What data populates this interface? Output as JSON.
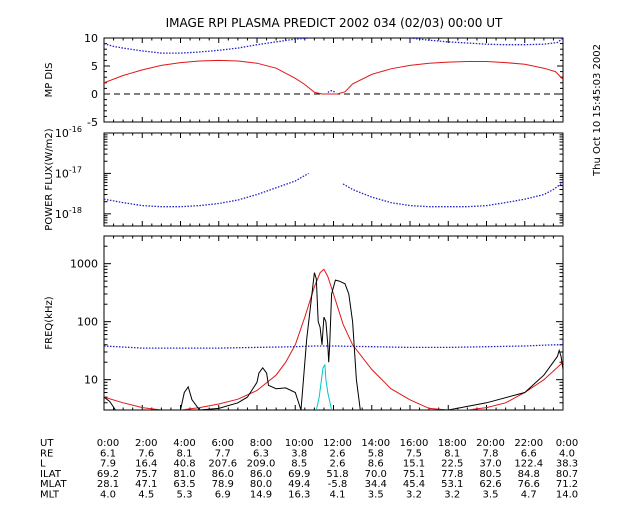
{
  "title": "IMAGE  RPI PLASMA PREDICT 2002 034 (02/03) 00:00 UT",
  "side_date": "Thu Oct 10 15:45:03 2002",
  "colors": {
    "axis": "#000000",
    "red": "#e01818",
    "blue": "#2020c8",
    "cyan": "#00c8c8",
    "black": "#000000"
  },
  "chart_data": [
    {
      "type": "line",
      "ylabel": "MP DIS",
      "ylim": [
        -5,
        10
      ],
      "yticks": [
        "-5",
        "0",
        "5",
        "10"
      ],
      "xlim": [
        0,
        24
      ],
      "reference_line": {
        "y": 0,
        "style": "dashed"
      },
      "series": [
        {
          "color": "red",
          "x": [
            0,
            1,
            2,
            3,
            4,
            5,
            6,
            7,
            8,
            9,
            10,
            10.5,
            11,
            11.4,
            12.2,
            12.6,
            13,
            14,
            15,
            16,
            17,
            18,
            19,
            20,
            21,
            22,
            23,
            23.6,
            24
          ],
          "y": [
            2,
            3.3,
            4.3,
            5.1,
            5.6,
            5.9,
            6,
            5.9,
            5.5,
            4.6,
            2.8,
            1.7,
            0.3,
            0,
            0,
            0.4,
            1.8,
            3.5,
            4.5,
            5.1,
            5.5,
            5.7,
            5.8,
            5.8,
            5.6,
            5.3,
            4.6,
            4,
            2.6
          ]
        },
        {
          "color": "blue",
          "style": "dotted",
          "x": [
            0,
            0.5,
            1,
            2,
            3,
            4,
            5,
            6,
            7,
            8,
            9,
            10,
            10.7
          ],
          "y": [
            9,
            8.5,
            8.2,
            7.7,
            7.3,
            7.3,
            7.5,
            7.8,
            8.2,
            8.8,
            9.3,
            9.8,
            10
          ]
        },
        {
          "color": "blue",
          "style": "dotted",
          "x": [
            16,
            17,
            18,
            19,
            20,
            21,
            22,
            23,
            23.7,
            24
          ],
          "y": [
            10,
            9.6,
            9.3,
            9.1,
            8.9,
            8.8,
            8.8,
            8.9,
            9.2,
            10
          ]
        },
        {
          "color": "blue",
          "style": "dotted",
          "x": [
            11.7,
            11.9,
            12.1
          ],
          "y": [
            0.3,
            0.6,
            0.3
          ]
        }
      ]
    },
    {
      "type": "line",
      "ylabel": "POWER FLUX(W/m2)",
      "yscale": "log",
      "ylim": [
        5e-19,
        1e-16
      ],
      "yticks": [
        {
          "base": "10",
          "exp": "-16",
          "value": 1e-16
        },
        {
          "base": "10",
          "exp": "-17",
          "value": 1e-17
        },
        {
          "base": "10",
          "exp": "-18",
          "value": 1e-18
        }
      ],
      "xlim": [
        0,
        24
      ],
      "series": [
        {
          "color": "blue",
          "style": "dotted",
          "x": [
            0,
            1,
            2,
            3,
            4,
            5,
            6,
            7,
            8,
            9,
            10,
            10.7
          ],
          "y": [
            2.3e-18,
            1.9e-18,
            1.6e-18,
            1.5e-18,
            1.5e-18,
            1.6e-18,
            1.8e-18,
            2.2e-18,
            3e-18,
            4.4e-18,
            6.5e-18,
            1e-17
          ]
        },
        {
          "color": "blue",
          "style": "dotted",
          "x": [
            12.5,
            13,
            14,
            15,
            16,
            17,
            18,
            19,
            20,
            21,
            22,
            23,
            23.5,
            24
          ],
          "y": [
            5.5e-18,
            4e-18,
            2.6e-18,
            1.9e-18,
            1.6e-18,
            1.5e-18,
            1.5e-18,
            1.5e-18,
            1.6e-18,
            1.9e-18,
            2.3e-18,
            3e-18,
            4e-18,
            6e-18
          ]
        }
      ]
    },
    {
      "type": "line",
      "ylabel": "FREQ(kHz)",
      "yscale": "log",
      "ylim": [
        3,
        3000
      ],
      "yticks": [
        "10",
        "100",
        "1000"
      ],
      "xlim": [
        0,
        24
      ],
      "series": [
        {
          "color": "red",
          "x": [
            0,
            1,
            2,
            3,
            4,
            5,
            6,
            7,
            8,
            9,
            9.5,
            10,
            10.5,
            11,
            11.3,
            11.5,
            11.7,
            12,
            12.5,
            13,
            14,
            15,
            16,
            17,
            18,
            19,
            20,
            21,
            22,
            23,
            24
          ],
          "y": [
            5,
            4,
            3.3,
            3,
            3,
            3.3,
            3.8,
            4.6,
            6.5,
            12,
            20,
            40,
            120,
            400,
            700,
            800,
            600,
            300,
            90,
            40,
            15,
            7,
            4.5,
            3.2,
            3,
            3,
            3.3,
            4,
            6,
            10,
            20
          ]
        },
        {
          "color": "blue",
          "style": "dotted",
          "x": [
            0,
            2,
            4,
            6,
            8,
            10,
            11,
            12,
            14,
            16,
            18,
            20,
            22,
            23.5,
            24
          ],
          "y": [
            38,
            35,
            35,
            35,
            36,
            37,
            38,
            38,
            37,
            36,
            36,
            37,
            38,
            40,
            40
          ]
        },
        {
          "color": "black",
          "x": [
            0,
            0.3,
            0.6,
            1,
            2,
            3,
            4,
            4.2,
            4.4,
            4.6,
            5,
            6,
            7,
            7.5,
            8,
            8.1,
            8.3,
            8.5,
            8.6,
            9,
            9.5,
            10,
            10.3,
            10.6,
            11,
            11.1,
            11.2,
            11.3,
            11.4,
            11.5,
            11.6,
            11.7,
            11.75,
            11.8,
            11.9,
            12.1,
            12.3,
            12.6,
            12.8,
            13,
            13.2,
            13.4,
            14,
            18,
            20,
            22,
            23,
            23.7,
            23.8,
            23.9,
            24
          ],
          "y": [
            5,
            4.2,
            3,
            3,
            3,
            3,
            3,
            6,
            7.5,
            4.5,
            3,
            3.2,
            4,
            5,
            9,
            13,
            16,
            13,
            8,
            7,
            7.2,
            6,
            3,
            50,
            700,
            550,
            100,
            80,
            40,
            120,
            100,
            40,
            20,
            40,
            300,
            520,
            500,
            450,
            300,
            100,
            10,
            3,
            3,
            3,
            4,
            6,
            12,
            25,
            32,
            25,
            15
          ]
        },
        {
          "color": "cyan",
          "x": [
            11.1,
            11.25,
            11.35,
            11.45,
            11.55,
            11.6,
            11.7,
            11.9
          ],
          "y": [
            3,
            5,
            9,
            16,
            18,
            10,
            6,
            3
          ]
        }
      ]
    }
  ],
  "x_axis": {
    "ticks": [
      "0:00",
      "2:00",
      "4:00",
      "6:00",
      "8:00",
      "10:00",
      "12:00",
      "14:00",
      "16:00",
      "18:00",
      "20:00",
      "22:00",
      "0:00"
    ],
    "tick_hours": [
      0,
      2,
      4,
      6,
      8,
      10,
      12,
      14,
      16,
      18,
      20,
      22,
      24
    ]
  },
  "table": {
    "rows": [
      {
        "label": "UT",
        "values": [
          "0:00",
          "2:00",
          "4:00",
          "6:00",
          "8:00",
          "10:00",
          "12:00",
          "14:00",
          "16:00",
          "18:00",
          "20:00",
          "22:00",
          "0:00"
        ]
      },
      {
        "label": "RE",
        "values": [
          "6.1",
          "7.6",
          "8.1",
          "7.7",
          "6.3",
          "3.8",
          "2.6",
          "5.8",
          "7.5",
          "8.1",
          "7.8",
          "6.6",
          "4.0"
        ]
      },
      {
        "label": "L",
        "values": [
          "7.9",
          "16.4",
          "40.8",
          "207.6",
          "209.0",
          "8.5",
          "2.6",
          "8.6",
          "15.1",
          "22.5",
          "37.0",
          "122.4",
          "38.3"
        ]
      },
      {
        "label": "ILAT",
        "values": [
          "69.2",
          "75.7",
          "81.0",
          "86.0",
          "86.0",
          "69.9",
          "51.8",
          "70.0",
          "75.1",
          "77.8",
          "80.5",
          "84.8",
          "80.7"
        ]
      },
      {
        "label": "MLAT",
        "values": [
          "28.1",
          "47.1",
          "63.5",
          "78.9",
          "80.0",
          "49.4",
          "-5.8",
          "34.4",
          "45.4",
          "53.1",
          "62.6",
          "76.6",
          "71.2"
        ]
      },
      {
        "label": "MLT",
        "values": [
          "4.0",
          "4.5",
          "5.3",
          "6.9",
          "14.9",
          "16.3",
          "4.1",
          "3.5",
          "3.2",
          "3.2",
          "3.5",
          "4.7",
          "14.0"
        ]
      }
    ]
  }
}
